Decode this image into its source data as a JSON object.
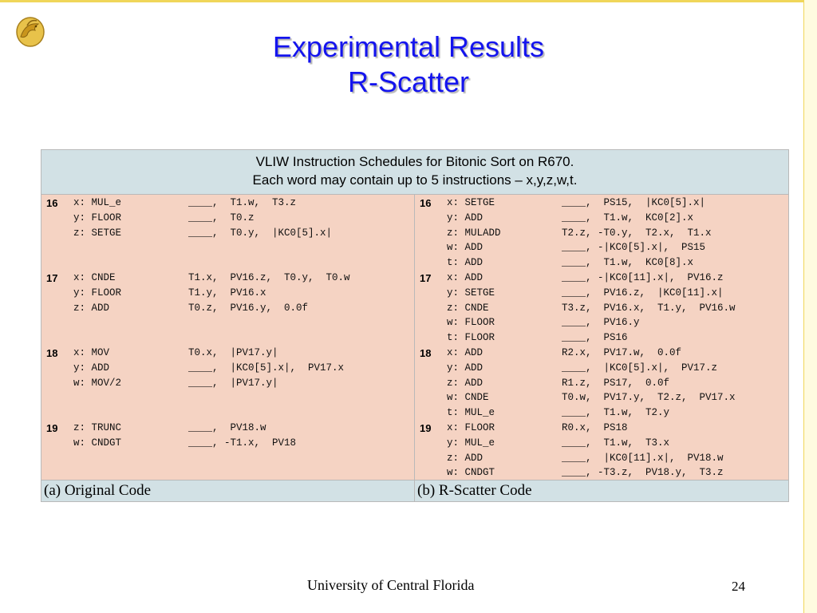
{
  "slide": {
    "title_line1": "Experimental Results",
    "title_line2": "R-Scatter",
    "logo_icon": "pegasus-logo-icon",
    "footer": "University of Central Florida",
    "page_number": "24"
  },
  "table": {
    "header_line1": "VLIW Instruction Schedules for Bitonic Sort on R670.",
    "header_line2": "Each word may contain up to 5 instructions – x,y,z,w,t.",
    "caption_left": "(a) Original Code",
    "caption_right": "(b) R-Scatter Code",
    "left": [
      {
        "num": "16",
        "op": "x: MUL_e",
        "args": "____,  T1.w,  T3.z"
      },
      {
        "num": "",
        "op": "y: FLOOR",
        "args": "____,  T0.z"
      },
      {
        "num": "",
        "op": "z: SETGE",
        "args": "____,  T0.y,  |KC0[5].x|"
      },
      {
        "num": "",
        "op": "",
        "args": ""
      },
      {
        "num": "",
        "op": "",
        "args": ""
      },
      {
        "num": "17",
        "op": "x: CNDE",
        "args": "T1.x,  PV16.z,  T0.y,  T0.w"
      },
      {
        "num": "",
        "op": "y: FLOOR",
        "args": "T1.y,  PV16.x"
      },
      {
        "num": "",
        "op": "z: ADD",
        "args": "T0.z,  PV16.y,  0.0f"
      },
      {
        "num": "",
        "op": "",
        "args": ""
      },
      {
        "num": "",
        "op": "",
        "args": ""
      },
      {
        "num": "18",
        "op": "x: MOV",
        "args": "T0.x,  |PV17.y|"
      },
      {
        "num": "",
        "op": "y: ADD",
        "args": "____,  |KC0[5].x|,  PV17.x"
      },
      {
        "num": "",
        "op": "w: MOV/2",
        "args": "____,  |PV17.y|"
      },
      {
        "num": "",
        "op": "",
        "args": ""
      },
      {
        "num": "",
        "op": "",
        "args": ""
      },
      {
        "num": "19",
        "op": "z: TRUNC",
        "args": "____,  PV18.w"
      },
      {
        "num": "",
        "op": "w: CNDGT",
        "args": "____, -T1.x,  PV18"
      }
    ],
    "right": [
      {
        "num": "16",
        "op": "x: SETGE",
        "args": "____,  PS15,  |KC0[5].x|"
      },
      {
        "num": "",
        "op": "y: ADD",
        "args": "____,  T1.w,  KC0[2].x"
      },
      {
        "num": "",
        "op": "z: MULADD",
        "args": "T2.z, -T0.y,  T2.x,  T1.x"
      },
      {
        "num": "",
        "op": "w: ADD",
        "args": "____, -|KC0[5].x|,  PS15"
      },
      {
        "num": "",
        "op": "t: ADD",
        "args": "____,  T1.w,  KC0[8].x"
      },
      {
        "num": "17",
        "op": "x: ADD",
        "args": "____, -|KC0[11].x|,  PV16.z"
      },
      {
        "num": "",
        "op": "y: SETGE",
        "args": "____,  PV16.z,  |KC0[11].x|"
      },
      {
        "num": "",
        "op": "z: CNDE",
        "args": "T3.z,  PV16.x,  T1.y,  PV16.w"
      },
      {
        "num": "",
        "op": "w: FLOOR",
        "args": "____,  PV16.y"
      },
      {
        "num": "",
        "op": "t: FLOOR",
        "args": "____,  PS16"
      },
      {
        "num": "18",
        "op": "x: ADD",
        "args": "R2.x,  PV17.w,  0.0f"
      },
      {
        "num": "",
        "op": "y: ADD",
        "args": "____,  |KC0[5].x|,  PV17.z"
      },
      {
        "num": "",
        "op": "z: ADD",
        "args": "R1.z,  PS17,  0.0f"
      },
      {
        "num": "",
        "op": "w: CNDE",
        "args": "T0.w,  PV17.y,  T2.z,  PV17.x"
      },
      {
        "num": "",
        "op": "t: MUL_e",
        "args": "____,  T1.w,  T2.y"
      },
      {
        "num": "19",
        "op": "x: FLOOR",
        "args": "R0.x,  PS18"
      },
      {
        "num": "",
        "op": "y: MUL_e",
        "args": "____,  T1.w,  T3.x"
      },
      {
        "num": "",
        "op": "z: ADD",
        "args": "____,  |KC0[11].x|,  PV18.w"
      },
      {
        "num": "",
        "op": "w: CNDGT",
        "args": "____, -T3.z,  PV18.y,  T3.z"
      }
    ]
  }
}
